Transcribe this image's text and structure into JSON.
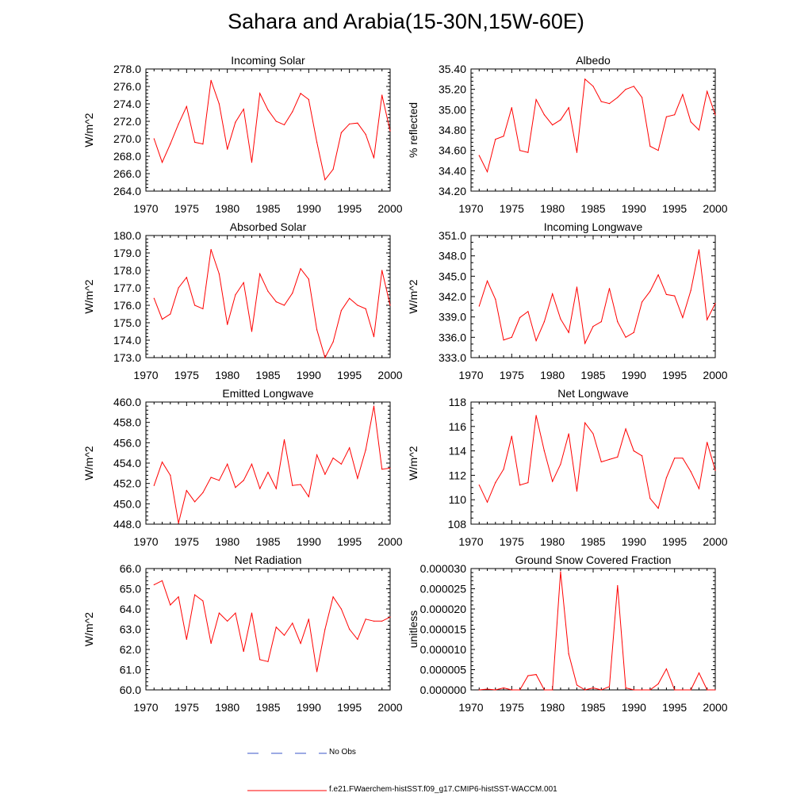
{
  "title": "Sahara and Arabia(15-30N,15W-60E)",
  "colors": {
    "model": "#ff0000",
    "obs": "#3a55c8",
    "axis": "#000000"
  },
  "legend": [
    {
      "label": "No Obs",
      "style": "dashed",
      "color": "#3a55c8"
    },
    {
      "label": "f.e21.FWaerchem-histSST.f09_g17.CMIP6-histSST-WACCM.001",
      "style": "solid",
      "color": "#ff0000"
    }
  ],
  "chart_data": [
    {
      "type": "line",
      "title": "Incoming Solar",
      "ylabel": "W/m^2",
      "xlim": [
        1970,
        2000
      ],
      "ylim": [
        264,
        278
      ],
      "x_ticks": [
        "1970",
        "1975",
        "1980",
        "1985",
        "1990",
        "1995",
        "2000"
      ],
      "y_ticks": [
        "264.0",
        "266.0",
        "268.0",
        "270.0",
        "272.0",
        "274.0",
        "276.0",
        "278.0"
      ],
      "x": [
        1971,
        1972,
        1973,
        1974,
        1975,
        1976,
        1977,
        1978,
        1979,
        1980,
        1981,
        1982,
        1983,
        1984,
        1985,
        1986,
        1987,
        1988,
        1989,
        1990,
        1991,
        1992,
        1993,
        1994,
        1995,
        1996,
        1997,
        1998,
        1999,
        2000
      ],
      "series": [
        {
          "values": [
            270.0,
            267.3,
            269.4,
            271.7,
            273.7,
            269.6,
            269.4,
            276.7,
            274.0,
            268.8,
            271.9,
            273.4,
            267.3,
            275.2,
            273.3,
            272.0,
            271.6,
            273.1,
            275.2,
            274.5,
            269.6,
            265.3,
            266.5,
            270.7,
            271.7,
            271.8,
            270.5,
            267.8,
            275.0,
            270.9
          ]
        }
      ]
    },
    {
      "type": "line",
      "title": "Albedo",
      "ylabel": "% reflected",
      "xlim": [
        1970,
        2000
      ],
      "ylim": [
        34.2,
        35.4
      ],
      "x_ticks": [
        "1970",
        "1975",
        "1980",
        "1985",
        "1990",
        "1995",
        "2000"
      ],
      "y_ticks": [
        "34.20",
        "34.40",
        "34.60",
        "34.80",
        "35.00",
        "35.20",
        "35.40"
      ],
      "x": [
        1971,
        1972,
        1973,
        1974,
        1975,
        1976,
        1977,
        1978,
        1979,
        1980,
        1981,
        1982,
        1983,
        1984,
        1985,
        1986,
        1987,
        1988,
        1989,
        1990,
        1991,
        1992,
        1993,
        1994,
        1995,
        1996,
        1997,
        1998,
        1999,
        2000
      ],
      "series": [
        {
          "values": [
            34.55,
            34.39,
            34.71,
            34.74,
            35.02,
            34.6,
            34.58,
            35.1,
            34.95,
            34.85,
            34.9,
            35.02,
            34.58,
            35.3,
            35.23,
            35.08,
            35.06,
            35.12,
            35.2,
            35.23,
            35.12,
            34.64,
            34.6,
            34.93,
            34.95,
            35.15,
            34.88,
            34.8,
            35.18,
            34.95
          ]
        }
      ]
    },
    {
      "type": "line",
      "title": "Absorbed Solar",
      "ylabel": "W/m^2",
      "xlim": [
        1970,
        2000
      ],
      "ylim": [
        173,
        180
      ],
      "x_ticks": [
        "1970",
        "1975",
        "1980",
        "1985",
        "1990",
        "1995",
        "2000"
      ],
      "y_ticks": [
        "173.0",
        "174.0",
        "175.0",
        "176.0",
        "177.0",
        "178.0",
        "179.0",
        "180.0"
      ],
      "x": [
        1971,
        1972,
        1973,
        1974,
        1975,
        1976,
        1977,
        1978,
        1979,
        1980,
        1981,
        1982,
        1983,
        1984,
        1985,
        1986,
        1987,
        1988,
        1989,
        1990,
        1991,
        1992,
        1993,
        1994,
        1995,
        1996,
        1997,
        1998,
        1999,
        2000
      ],
      "series": [
        {
          "values": [
            176.4,
            175.2,
            175.5,
            177.0,
            177.6,
            176.0,
            175.8,
            179.2,
            177.8,
            174.9,
            176.6,
            177.3,
            174.5,
            177.8,
            176.8,
            176.2,
            176.0,
            176.7,
            178.1,
            177.5,
            174.6,
            173.0,
            173.9,
            175.7,
            176.4,
            176.0,
            175.8,
            174.2,
            178.0,
            176.0
          ]
        }
      ]
    },
    {
      "type": "line",
      "title": "Incoming Longwave",
      "ylabel": "W/m^2",
      "xlim": [
        1970,
        2000
      ],
      "ylim": [
        333,
        351
      ],
      "x_ticks": [
        "1970",
        "1975",
        "1980",
        "1985",
        "1990",
        "1995",
        "2000"
      ],
      "y_ticks": [
        "333.0",
        "336.0",
        "339.0",
        "342.0",
        "345.0",
        "348.0",
        "351.0"
      ],
      "x": [
        1971,
        1972,
        1973,
        1974,
        1975,
        1976,
        1977,
        1978,
        1979,
        1980,
        1981,
        1982,
        1983,
        1984,
        1985,
        1986,
        1987,
        1988,
        1989,
        1990,
        1991,
        1992,
        1993,
        1994,
        1995,
        1996,
        1997,
        1998,
        1999,
        2000
      ],
      "series": [
        {
          "values": [
            340.6,
            344.3,
            341.6,
            335.6,
            336.0,
            338.9,
            339.8,
            335.5,
            338.3,
            342.4,
            338.7,
            336.7,
            343.4,
            335.1,
            337.6,
            338.3,
            343.2,
            338.3,
            336.0,
            336.7,
            341.2,
            342.8,
            345.2,
            342.3,
            342.1,
            338.9,
            342.9,
            348.9,
            338.6,
            341.0
          ]
        }
      ]
    },
    {
      "type": "line",
      "title": "Emitted Longwave",
      "ylabel": "W/m^2",
      "xlim": [
        1970,
        2000
      ],
      "ylim": [
        448,
        460
      ],
      "x_ticks": [
        "1970",
        "1975",
        "1980",
        "1985",
        "1990",
        "1995",
        "2000"
      ],
      "y_ticks": [
        "448.0",
        "450.0",
        "452.0",
        "454.0",
        "456.0",
        "458.0",
        "460.0"
      ],
      "x": [
        1971,
        1972,
        1973,
        1974,
        1975,
        1976,
        1977,
        1978,
        1979,
        1980,
        1981,
        1982,
        1983,
        1984,
        1985,
        1986,
        1987,
        1988,
        1989,
        1990,
        1991,
        1992,
        1993,
        1994,
        1995,
        1996,
        1997,
        1998,
        1999,
        2000
      ],
      "series": [
        {
          "values": [
            451.8,
            454.1,
            452.8,
            448.1,
            451.3,
            450.2,
            451.1,
            452.6,
            452.3,
            453.9,
            451.6,
            452.3,
            453.9,
            451.5,
            453.1,
            451.5,
            456.3,
            451.8,
            451.9,
            450.7,
            454.8,
            452.9,
            454.5,
            453.9,
            455.5,
            452.5,
            455.3,
            459.6,
            453.4,
            453.5
          ]
        }
      ]
    },
    {
      "type": "line",
      "title": "Net Longwave",
      "ylabel": "W/m^2",
      "xlim": [
        1970,
        2000
      ],
      "ylim": [
        108,
        118
      ],
      "x_ticks": [
        "1970",
        "1975",
        "1980",
        "1985",
        "1990",
        "1995",
        "2000"
      ],
      "y_ticks": [
        "108",
        "110",
        "112",
        "114",
        "116",
        "118"
      ],
      "x": [
        1971,
        1972,
        1973,
        1974,
        1975,
        1976,
        1977,
        1978,
        1979,
        1980,
        1981,
        1982,
        1983,
        1984,
        1985,
        1986,
        1987,
        1988,
        1989,
        1990,
        1991,
        1992,
        1993,
        1994,
        1995,
        1996,
        1997,
        1998,
        1999,
        2000
      ],
      "series": [
        {
          "values": [
            111.2,
            109.8,
            111.4,
            112.5,
            115.2,
            111.2,
            111.4,
            116.9,
            114.0,
            111.5,
            112.9,
            115.4,
            110.7,
            116.3,
            115.4,
            113.1,
            113.3,
            113.5,
            115.8,
            114.0,
            113.6,
            110.1,
            109.3,
            111.8,
            113.4,
            113.4,
            112.3,
            110.9,
            114.7,
            112.4
          ]
        }
      ]
    },
    {
      "type": "line",
      "title": "Net Radiation",
      "ylabel": "W/m^2",
      "xlim": [
        1970,
        2000
      ],
      "ylim": [
        60,
        66
      ],
      "x_ticks": [
        "1970",
        "1975",
        "1980",
        "1985",
        "1990",
        "1995",
        "2000"
      ],
      "y_ticks": [
        "60.0",
        "61.0",
        "62.0",
        "63.0",
        "64.0",
        "65.0",
        "66.0"
      ],
      "x": [
        1971,
        1972,
        1973,
        1974,
        1975,
        1976,
        1977,
        1978,
        1979,
        1980,
        1981,
        1982,
        1983,
        1984,
        1985,
        1986,
        1987,
        1988,
        1989,
        1990,
        1991,
        1992,
        1993,
        1994,
        1995,
        1996,
        1997,
        1998,
        1999,
        2000
      ],
      "series": [
        {
          "values": [
            65.2,
            65.4,
            64.2,
            64.6,
            62.5,
            64.7,
            64.4,
            62.3,
            63.8,
            63.4,
            63.8,
            61.9,
            63.8,
            61.5,
            61.4,
            63.1,
            62.7,
            63.3,
            62.3,
            63.5,
            60.9,
            63.0,
            64.6,
            64.0,
            63.0,
            62.5,
            63.5,
            63.4,
            63.4,
            63.6
          ]
        }
      ]
    },
    {
      "type": "line",
      "title": "Ground Snow Covered Fraction",
      "ylabel": "unitless",
      "xlim": [
        1970,
        2000
      ],
      "ylim": [
        0,
        3e-05
      ],
      "x_ticks": [
        "1970",
        "1975",
        "1980",
        "1985",
        "1990",
        "1995",
        "2000"
      ],
      "y_ticks": [
        "0.000000",
        "0.000005",
        "0.000010",
        "0.000015",
        "0.000020",
        "0.000025",
        "0.000030"
      ],
      "x": [
        1971,
        1972,
        1973,
        1974,
        1975,
        1976,
        1977,
        1978,
        1979,
        1980,
        1981,
        1982,
        1983,
        1984,
        1985,
        1986,
        1987,
        1988,
        1989,
        1990,
        1991,
        1992,
        1993,
        1994,
        1995,
        1996,
        1997,
        1998,
        1999,
        2000
      ],
      "series": [
        {
          "values": [
            0.0,
            2e-07,
            0.0,
            5e-07,
            0.0,
            0.0,
            3.5e-06,
            3.8e-06,
            0.0,
            0.0,
            2.92e-05,
            8.9e-06,
            1.2e-06,
            0.0,
            5e-07,
            0.0,
            8e-07,
            2.58e-05,
            5e-07,
            0.0,
            0.0,
            0.0,
            1.5e-06,
            5.2e-06,
            0.0,
            0.0,
            0.0,
            4.2e-06,
            0.0,
            0.0
          ]
        }
      ]
    }
  ]
}
